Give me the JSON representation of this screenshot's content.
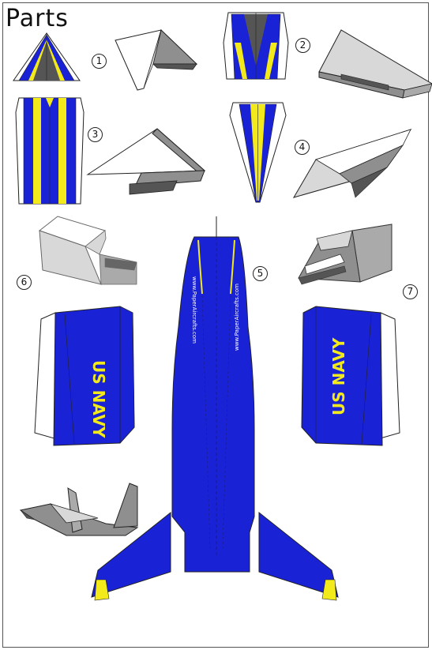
{
  "title": "Parts",
  "part_numbers": [
    "1",
    "2",
    "3",
    "4",
    "5",
    "6",
    "7"
  ],
  "fuselage_url": "www.PaperAircrafts.com",
  "tail_label": "US NAVY",
  "colors": {
    "navy_blue": "#1a22d6",
    "yellow": "#f2ea1a",
    "dark_gray": "#555555",
    "gray": "#8f8f8f",
    "light_gray": "#d8d8d8"
  }
}
